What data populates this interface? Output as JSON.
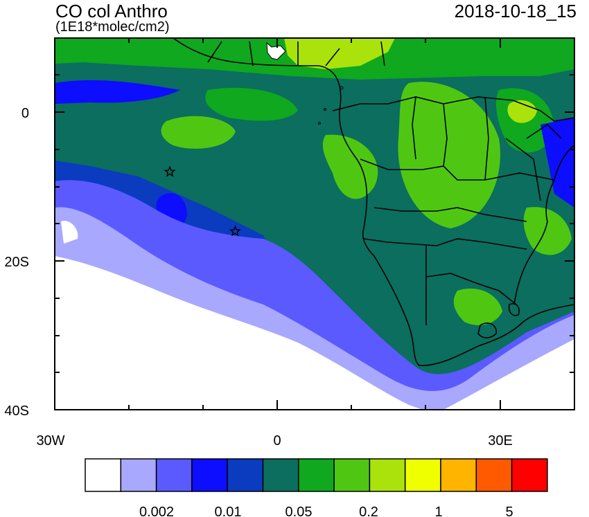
{
  "header": {
    "title": "CO col Anthro",
    "units": "(1E18*molec/cm2)",
    "datetime": "2018-10-18_15"
  },
  "axes": {
    "lat_labels": [
      "0",
      "20S",
      "40S"
    ],
    "lon_labels": [
      "30W",
      "0",
      "30E"
    ]
  },
  "map": {
    "lon_range": [
      -30,
      40
    ],
    "lat_range": [
      -40,
      10
    ],
    "markers": [
      {
        "name": "star-marker",
        "lon": -14.5,
        "lat": -8.0
      },
      {
        "name": "star-marker",
        "lon": -5.7,
        "lat": -16.0
      }
    ]
  },
  "colorbar": {
    "colors": [
      "#ffffff",
      "#a8a8ff",
      "#5a5aff",
      "#0d0dff",
      "#0b3bbf",
      "#0b6e5e",
      "#0fa81e",
      "#4fc712",
      "#a9e30b",
      "#f0ff00",
      "#ffb400",
      "#ff5a00",
      "#ff0000"
    ],
    "tick_labels": [
      "0.002",
      "0.01",
      "0.05",
      "0.2",
      "1",
      "5"
    ]
  },
  "field_colors": {
    "white": "#ffffff",
    "lavender": "#a8a8ff",
    "light_blue": "#5a5aff",
    "blue": "#0d0dff",
    "dark_blue": "#0b3bbf",
    "teal": "#0b6e5e",
    "green": "#0fa81e",
    "light_green": "#4fc712",
    "yellow_green": "#a9e30b"
  }
}
